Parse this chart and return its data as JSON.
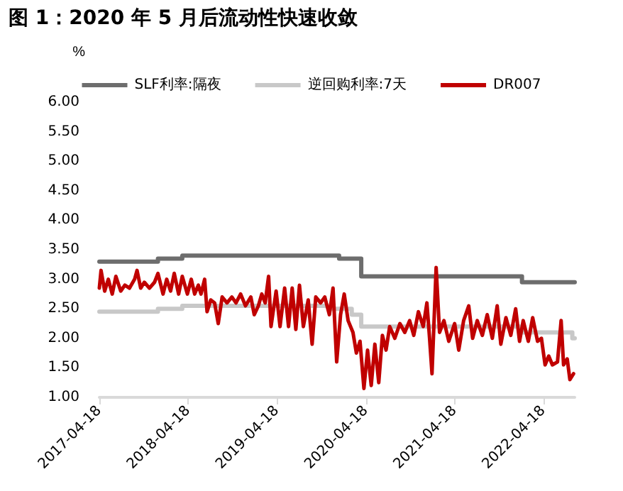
{
  "chart_data": {
    "type": "line",
    "title": "图 1：2020 年 5 月后流动性快速收敛",
    "ylabel": "%",
    "xlim": [
      "2017-04-18",
      "2022-08-25"
    ],
    "xticks": [
      "2017-04-18",
      "2018-04-18",
      "2019-04-18",
      "2020-04-18",
      "2021-04-18",
      "2022-04-18"
    ],
    "ylim": [
      1,
      6
    ],
    "yticks": [
      {
        "value": 1,
        "label": "1.00"
      },
      {
        "value": 1.5,
        "label": "1.50"
      },
      {
        "value": 2,
        "label": "2.00"
      },
      {
        "value": 2.5,
        "label": "2.50"
      },
      {
        "value": 3,
        "label": "3.00"
      },
      {
        "value": 3.5,
        "label": "3.50"
      },
      {
        "value": 4,
        "label": "4.00"
      },
      {
        "value": 4.5,
        "label": "4.50"
      },
      {
        "value": 5,
        "label": "5.00"
      },
      {
        "value": 5.5,
        "label": "5.50"
      },
      {
        "value": 6,
        "label": "6.00"
      }
    ],
    "grid": false,
    "legend": "top",
    "marker": "none",
    "series": [
      {
        "name": "SLF利率:隔夜",
        "type": "step",
        "color": "#6d6d6d",
        "x": [
          "2017-04-18",
          "2017-12-15",
          "2018-03-25",
          "2019-12-30",
          "2020-03-30",
          "2022-01-20",
          "2022-08-25"
        ],
        "values": [
          3.3,
          3.35,
          3.4,
          3.35,
          3.05,
          2.95,
          2.95
        ]
      },
      {
        "name": "逆回购利率:7天",
        "type": "step",
        "color": "#c8c8c8",
        "x": [
          "2017-04-18",
          "2017-12-15",
          "2018-03-25",
          "2019-11-18",
          "2020-02-20",
          "2020-03-30",
          "2022-01-17",
          "2022-08-15",
          "2022-08-25"
        ],
        "values": [
          2.45,
          2.5,
          2.55,
          2.5,
          2.4,
          2.2,
          2.1,
          2.0,
          2.0
        ]
      },
      {
        "name": "DR007",
        "color": "#c00000",
        "x": [
          "2017-04-18",
          "2017-04-25",
          "2017-05-10",
          "2017-05-25",
          "2017-06-10",
          "2017-06-25",
          "2017-07-15",
          "2017-08-01",
          "2017-08-20",
          "2017-09-10",
          "2017-09-20",
          "2017-10-05",
          "2017-10-20",
          "2017-11-10",
          "2017-12-01",
          "2017-12-15",
          "2018-01-05",
          "2018-01-20",
          "2018-02-05",
          "2018-02-20",
          "2018-03-10",
          "2018-03-25",
          "2018-04-15",
          "2018-05-01",
          "2018-05-15",
          "2018-05-30",
          "2018-06-10",
          "2018-06-25",
          "2018-07-05",
          "2018-07-20",
          "2018-08-05",
          "2018-08-20",
          "2018-09-05",
          "2018-09-25",
          "2018-10-15",
          "2018-11-01",
          "2018-11-20",
          "2018-12-10",
          "2019-01-01",
          "2019-01-15",
          "2019-02-01",
          "2019-02-15",
          "2019-03-01",
          "2019-03-15",
          "2019-03-25",
          "2019-04-15",
          "2019-05-01",
          "2019-05-20",
          "2019-06-05",
          "2019-06-20",
          "2019-07-05",
          "2019-07-20",
          "2019-08-05",
          "2019-08-25",
          "2019-09-10",
          "2019-09-25",
          "2019-10-15",
          "2019-11-01",
          "2019-11-20",
          "2019-12-05",
          "2019-12-20",
          "2020-01-05",
          "2020-01-20",
          "2020-02-05",
          "2020-02-25",
          "2020-03-10",
          "2020-03-25",
          "2020-04-10",
          "2020-04-25",
          "2020-05-10",
          "2020-05-25",
          "2020-06-10",
          "2020-06-25",
          "2020-07-10",
          "2020-07-25",
          "2020-08-15",
          "2020-09-05",
          "2020-09-25",
          "2020-10-15",
          "2020-11-01",
          "2020-11-20",
          "2020-12-10",
          "2020-12-25",
          "2021-01-05",
          "2021-01-15",
          "2021-02-01",
          "2021-02-15",
          "2021-03-05",
          "2021-03-25",
          "2021-04-18",
          "2021-05-05",
          "2021-05-25",
          "2021-06-15",
          "2021-07-01",
          "2021-07-20",
          "2021-08-10",
          "2021-08-30",
          "2021-09-20",
          "2021-10-10",
          "2021-10-25",
          "2021-11-15",
          "2021-12-05",
          "2021-12-25",
          "2022-01-10",
          "2022-01-25",
          "2022-02-15",
          "2022-03-05",
          "2022-03-25",
          "2022-04-10",
          "2022-04-25",
          "2022-05-10",
          "2022-05-25",
          "2022-06-15",
          "2022-06-30",
          "2022-07-10",
          "2022-07-25",
          "2022-08-05",
          "2022-08-20"
        ],
        "values": [
          2.85,
          3.15,
          2.8,
          3.0,
          2.75,
          3.05,
          2.8,
          2.9,
          2.85,
          3.0,
          3.15,
          2.85,
          2.95,
          2.85,
          2.95,
          3.1,
          2.75,
          3.0,
          2.8,
          3.1,
          2.75,
          3.05,
          2.75,
          3.0,
          2.75,
          2.9,
          2.75,
          3.0,
          2.45,
          2.65,
          2.6,
          2.25,
          2.7,
          2.6,
          2.7,
          2.6,
          2.75,
          2.55,
          2.7,
          2.4,
          2.55,
          2.75,
          2.6,
          3.05,
          2.2,
          2.8,
          2.2,
          2.85,
          2.2,
          2.85,
          2.15,
          2.9,
          2.2,
          2.65,
          1.9,
          2.7,
          2.6,
          2.7,
          2.4,
          2.85,
          1.6,
          2.4,
          2.75,
          2.3,
          2.1,
          1.75,
          1.95,
          1.15,
          1.8,
          1.2,
          1.9,
          1.25,
          2.05,
          1.8,
          2.2,
          2.0,
          2.25,
          2.1,
          2.3,
          2.05,
          2.45,
          2.2,
          2.6,
          2.0,
          1.4,
          3.2,
          2.1,
          2.3,
          1.95,
          2.25,
          1.8,
          2.3,
          2.55,
          2.0,
          2.3,
          2.05,
          2.4,
          2.0,
          2.55,
          1.9,
          2.35,
          2.05,
          2.5,
          1.95,
          2.3,
          1.95,
          2.35,
          1.95,
          2.0,
          1.55,
          1.7,
          1.55,
          1.6,
          2.3,
          1.55,
          1.65,
          1.3,
          1.4
        ]
      }
    ]
  }
}
